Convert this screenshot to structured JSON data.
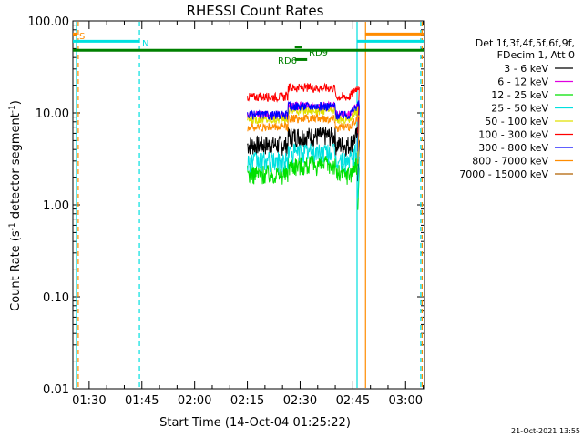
{
  "chart_data": {
    "type": "line",
    "title": "RHESSI Count Rates",
    "xlabel": "Start Time (14-Oct-04 01:25:22)",
    "ylabel_main": "Count Rate (s",
    "ylabel_sup": "-1",
    "ylabel_tail": " detector segment",
    "ylabel_sup2": "-1",
    "ylabel_close": ")",
    "y_scale": "log",
    "ylim": [
      0.01,
      100
    ],
    "xlim_minutes": [
      85.37,
      185.37
    ],
    "x_ticks": [
      {
        "label": "01:30",
        "minutes": 90
      },
      {
        "label": "01:45",
        "minutes": 105
      },
      {
        "label": "02:00",
        "minutes": 120
      },
      {
        "label": "02:15",
        "minutes": 135
      },
      {
        "label": "02:30",
        "minutes": 150
      },
      {
        "label": "02:45",
        "minutes": 165
      },
      {
        "label": "03:00",
        "minutes": 180
      }
    ],
    "y_ticks": [
      {
        "label": "100.00",
        "value": 100
      },
      {
        "label": "10.00",
        "value": 10
      },
      {
        "label": "1.00",
        "value": 1
      },
      {
        "label": "0.10",
        "value": 0.1
      },
      {
        "label": "0.01",
        "value": 0.01
      }
    ],
    "legend": {
      "header1": "Det 1f,3f,4f,5f,6f,9f,",
      "header2": "FDecim 1, Att 0",
      "placement": "right"
    },
    "series": [
      {
        "name": "3 - 6 keV",
        "color": "#000000",
        "level": 4.5
      },
      {
        "name": "6 - 12 keV",
        "color": "#e000e0",
        "level": 9.5
      },
      {
        "name": "12 - 25 keV",
        "color": "#00e000",
        "level": 2.2
      },
      {
        "name": "25 - 50 keV",
        "color": "#00e0e0",
        "level": 3.0
      },
      {
        "name": "50 - 100 keV",
        "color": "#e0e000",
        "level": 8.5
      },
      {
        "name": "100 - 300 keV",
        "color": "#ff0000",
        "level": 15
      },
      {
        "name": "300 - 800 keV",
        "color": "#0000ff",
        "level": 9.5
      },
      {
        "name": "800 - 7000 keV",
        "color": "#ff8c00",
        "level": 7.0
      },
      {
        "name": "7000 - 15000 keV",
        "color": "#b06000",
        "level": 0
      }
    ],
    "data_interval_minutes": [
      135.0,
      166.8
    ],
    "annotations": [
      {
        "label": "S",
        "color": "#ff8c00"
      },
      {
        "label": "N",
        "color": "#00e0e0"
      },
      {
        "label": "RD6",
        "color": "#008000"
      },
      {
        "label": "RD9",
        "color": "#008000"
      }
    ],
    "flag_bars": [
      {
        "name": "saa",
        "color": "#ff8c00",
        "start_min": 85.37,
        "end_min": 86.6,
        "level": 72
      },
      {
        "name": "saa",
        "color": "#ff8c00",
        "start_min": 168.5,
        "end_min": 185.37,
        "level": 72
      },
      {
        "name": "night",
        "color": "#00e0e0",
        "start_min": 85.37,
        "end_min": 104.3,
        "level": 60
      },
      {
        "name": "night",
        "color": "#00e0e0",
        "start_min": 166.2,
        "end_min": 185.37,
        "level": 60
      },
      {
        "name": "decimation",
        "color": "#008000",
        "start_min": 85.37,
        "end_min": 185.37,
        "level": 48
      },
      {
        "name": "rd6",
        "color": "#008000",
        "start_min": 148.5,
        "end_min": 152.0,
        "level": 38
      },
      {
        "name": "rd9",
        "color": "#008000",
        "start_min": 148.5,
        "end_min": 150.6,
        "level": 52
      }
    ],
    "vertical_markers": [
      {
        "minutes": 86.4,
        "color": "#00e0e0",
        "style": "solid"
      },
      {
        "minutes": 86.9,
        "color": "#ff8c00",
        "style": "dashed"
      },
      {
        "minutes": 104.3,
        "color": "#00e0e0",
        "style": "dashed"
      },
      {
        "minutes": 166.2,
        "color": "#00e0e0",
        "style": "solid"
      },
      {
        "minutes": 168.6,
        "color": "#ff8c00",
        "style": "solid"
      },
      {
        "minutes": 184.3,
        "color": "#00e0e0",
        "style": "dashed"
      },
      {
        "minutes": 184.7,
        "color": "#ff8c00",
        "style": "dashed"
      }
    ]
  },
  "footer": {
    "date": "21-Oct-2021 13:55"
  }
}
